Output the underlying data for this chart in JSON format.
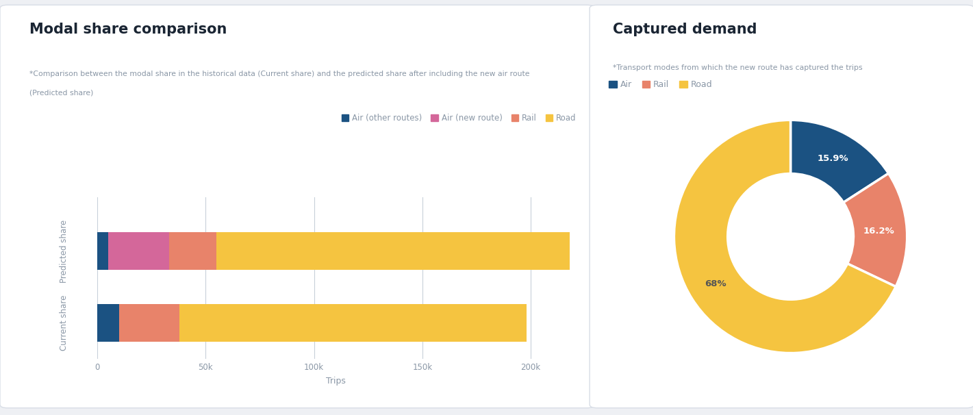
{
  "left_title": "Modal share comparison",
  "left_subtitle": "*Comparison between the modal share in the historical data (Current share) and the predicted share after including the new air route (Predicted share)",
  "right_title": "Captured demand",
  "right_subtitle": "*Transport modes from which the new route has captured the trips",
  "bar_categories": [
    "Predicted share",
    "Current share"
  ],
  "bar_segments": [
    "Air (other routes)",
    "Air (new route)",
    "Rail",
    "Road"
  ],
  "bar_data_predicted": [
    5000,
    28000,
    22000,
    163000
  ],
  "bar_data_current": [
    10000,
    0,
    28000,
    160000
  ],
  "bar_colors": [
    "#1b5282",
    "#d4679a",
    "#e8836a",
    "#f5c440"
  ],
  "donut_labels": [
    "Air",
    "Rail",
    "Road"
  ],
  "donut_values": [
    15.9,
    16.2,
    68.0
  ],
  "donut_colors": [
    "#1b5282",
    "#e8836a",
    "#f5c440"
  ],
  "donut_pct_colors": [
    "#ffffff",
    "#ffffff",
    "#555555"
  ],
  "x_label": "Trips",
  "x_ticks": [
    0,
    50000,
    100000,
    150000,
    200000
  ],
  "x_tick_labels": [
    "0",
    "50k",
    "100k",
    "150k",
    "200k"
  ],
  "bg_color": "#eef0f4",
  "panel_color": "#ffffff",
  "panel_border": "#d8dde6",
  "grid_color": "#c8d0da",
  "title_color": "#1a2533",
  "subtitle_color": "#8a97a6",
  "tick_color": "#8a97a6"
}
